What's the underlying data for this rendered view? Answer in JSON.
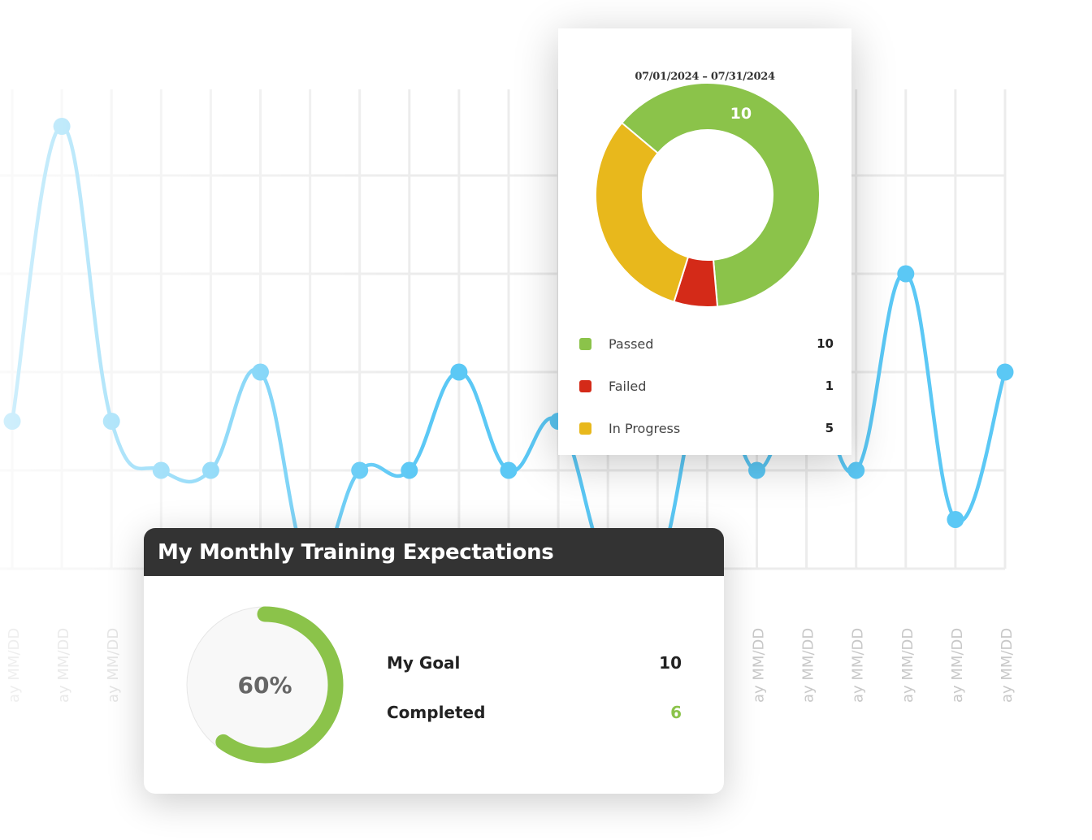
{
  "chart_data": [
    {
      "type": "line",
      "x_tick_labels": [
        "ay MM/DD",
        "ay MM/DD",
        "ay MM/DD",
        "ay MM/DD",
        "ay MM/DD",
        "ay MM/DD",
        "ay MM/DD",
        "ay MM/DD",
        "ay MM/DD",
        "ay MM/DD",
        "ay MM/DD",
        "ay MM/DD",
        "ay MM/DD",
        "ay MM/DD",
        "ay MM/DD",
        "ay MM/DD",
        "ay MM/DD",
        "ay MM/DD",
        "ay MM/DD",
        "ay MM/DD",
        "ay MM/DD"
      ],
      "values": [
        1.5,
        4.5,
        1.5,
        1,
        1,
        2,
        0,
        1,
        1,
        2,
        1,
        1.5,
        0,
        0,
        2,
        1,
        2,
        1,
        3,
        0.5,
        2
      ],
      "ylim": [
        0,
        5
      ],
      "grid": true,
      "color": "#5bc8f5"
    },
    {
      "type": "pie",
      "variant": "donut",
      "title": "07/01/2024  – 07/31/2024",
      "slices": [
        {
          "label": "Passed",
          "value": 10,
          "color": "#8bc34a"
        },
        {
          "label": "Failed",
          "value": 1,
          "color": "#d42a18"
        },
        {
          "label": "In Progress",
          "value": 5,
          "color": "#e8b81c"
        }
      ],
      "data_label": "10",
      "legend": "bottom"
    },
    {
      "type": "pie",
      "variant": "progress-ring",
      "value_percent": 60,
      "label": "60%",
      "color": "#8bc34a"
    }
  ],
  "status_card": {
    "date_range": "07/01/2024  – 07/31/2024",
    "legend": [
      {
        "label": "Passed",
        "value": "10",
        "color": "#8bc34a"
      },
      {
        "label": "Failed",
        "value": "1",
        "color": "#d42a18"
      },
      {
        "label": "In Progress",
        "value": "5",
        "color": "#e8b81c"
      }
    ]
  },
  "expectations_card": {
    "title": "My Monthly Training Expectations",
    "percent_label": "60%",
    "goal_label": "My Goal",
    "goal_value": "10",
    "completed_label": "Completed",
    "completed_value": "6"
  }
}
